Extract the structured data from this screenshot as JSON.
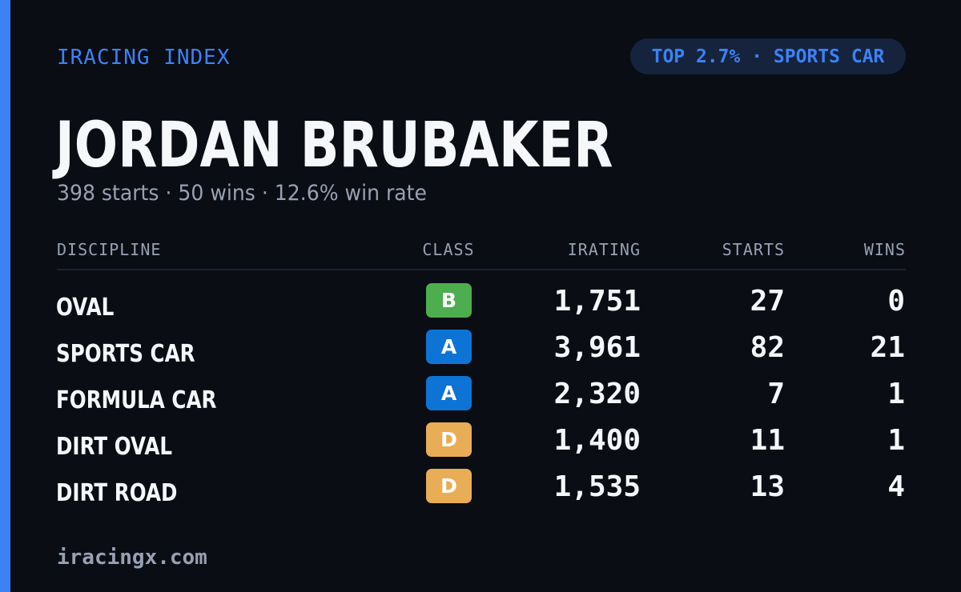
{
  "header": {
    "brand": "IRACING INDEX",
    "rank_badge": "TOP 2.7% · SPORTS CAR"
  },
  "driver": {
    "name": "JORDAN BRUBAKER",
    "summary": "398 starts · 50 wins · 12.6% win rate"
  },
  "table": {
    "columns": {
      "discipline": "DISCIPLINE",
      "class": "CLASS",
      "irating": "IRATING",
      "starts": "STARTS",
      "wins": "WINS"
    },
    "rows": [
      {
        "discipline": "OVAL",
        "class": "B",
        "class_color": "#4cae4f",
        "irating": "1,751",
        "starts": "27",
        "wins": "0"
      },
      {
        "discipline": "SPORTS CAR",
        "class": "A",
        "class_color": "#0d74d6",
        "irating": "3,961",
        "starts": "82",
        "wins": "21"
      },
      {
        "discipline": "FORMULA CAR",
        "class": "A",
        "class_color": "#0d74d6",
        "irating": "2,320",
        "starts": "7",
        "wins": "1"
      },
      {
        "discipline": "DIRT OVAL",
        "class": "D",
        "class_color": "#e9ad56",
        "irating": "1,400",
        "starts": "11",
        "wins": "1"
      },
      {
        "discipline": "DIRT ROAD",
        "class": "D",
        "class_color": "#e9ad56",
        "irating": "1,535",
        "starts": "13",
        "wins": "4"
      }
    ]
  },
  "footer": {
    "site": "iracingx.com"
  },
  "colors": {
    "accent": "#3b82f6",
    "background": "#0a0d14",
    "muted_text": "#98a1b3"
  }
}
